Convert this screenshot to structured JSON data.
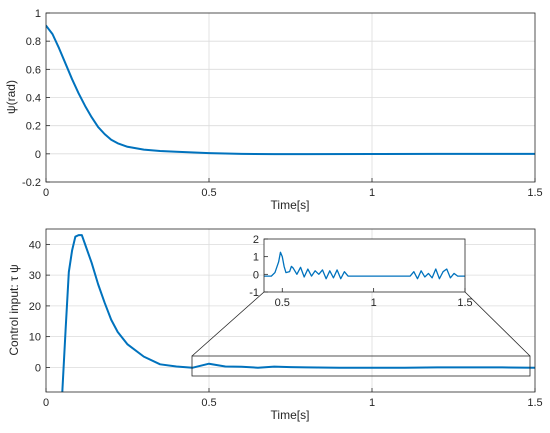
{
  "chart_data": [
    {
      "type": "line",
      "xlabel": "Time[s]",
      "ylabel": "ψ(rad)",
      "xlim": [
        0,
        1.5
      ],
      "ylim": [
        -0.2,
        1
      ],
      "grid": true,
      "xticks": [
        0,
        0.5,
        1,
        1.5
      ],
      "xtick_labels": [
        "0",
        "0.5",
        "1",
        "1.5"
      ],
      "yticks": [
        -0.2,
        0,
        0.2,
        0.4,
        0.6,
        0.8,
        1
      ],
      "ytick_labels": [
        "-0.2",
        "0",
        "0.2",
        "0.4",
        "0.6",
        "0.8",
        "1"
      ],
      "color": "#0072BD",
      "x": [
        0,
        0.02,
        0.04,
        0.06,
        0.08,
        0.1,
        0.12,
        0.14,
        0.16,
        0.18,
        0.2,
        0.22,
        0.25,
        0.3,
        0.35,
        0.4,
        0.5,
        0.6,
        0.7,
        0.8,
        1.0,
        1.2,
        1.5
      ],
      "y": [
        0.91,
        0.85,
        0.75,
        0.64,
        0.53,
        0.43,
        0.34,
        0.26,
        0.19,
        0.14,
        0.1,
        0.075,
        0.05,
        0.03,
        0.02,
        0.015,
        0.005,
        0.0,
        -0.002,
        -0.002,
        -0.001,
        0.0,
        0.0
      ]
    },
    {
      "type": "line",
      "xlabel": "Time[s]",
      "ylabel": "Control input: τ ψ",
      "xlim": [
        0,
        1.5
      ],
      "ylim": [
        -8,
        45
      ],
      "grid": true,
      "xticks": [
        0,
        0.5,
        1,
        1.5
      ],
      "xtick_labels": [
        "0",
        "0.5",
        "1",
        "1.5"
      ],
      "yticks": [
        0,
        10,
        20,
        30,
        40
      ],
      "ytick_labels": [
        "0",
        "10",
        "20",
        "30",
        "40"
      ],
      "color": "#0072BD",
      "x": [
        0.05,
        0.06,
        0.07,
        0.08,
        0.09,
        0.1,
        0.11,
        0.12,
        0.14,
        0.16,
        0.18,
        0.2,
        0.22,
        0.25,
        0.3,
        0.35,
        0.4,
        0.45,
        0.5,
        0.55,
        0.6,
        0.65,
        0.7,
        0.75,
        0.8,
        0.9,
        1.0,
        1.1,
        1.2,
        1.3,
        1.4,
        1.5
      ],
      "y": [
        -8,
        12,
        31,
        38,
        42.5,
        43,
        43,
        40,
        34,
        27,
        21,
        15.5,
        11.5,
        7.5,
        3.5,
        1,
        0.3,
        -0.1,
        1.2,
        0.3,
        0.2,
        -0.1,
        0.25,
        0.1,
        0.0,
        -0.1,
        -0.1,
        -0.1,
        0.0,
        0.0,
        0.0,
        -0.1
      ]
    },
    {
      "type": "line",
      "xlim": [
        0.4,
        1.5
      ],
      "ylim": [
        -1,
        2
      ],
      "grid": false,
      "xticks": [
        0.5,
        1,
        1.5
      ],
      "xtick_labels": [
        "0.5",
        "1",
        "1.5"
      ],
      "yticks": [
        -1,
        0,
        1,
        2
      ],
      "ytick_labels": [
        "-1",
        "0",
        "1",
        "2"
      ],
      "color": "#0072BD",
      "x": [
        0.4,
        0.44,
        0.46,
        0.48,
        0.49,
        0.5,
        0.51,
        0.52,
        0.54,
        0.55,
        0.56,
        0.58,
        0.6,
        0.62,
        0.64,
        0.66,
        0.68,
        0.7,
        0.72,
        0.74,
        0.76,
        0.78,
        0.8,
        0.82,
        0.84,
        0.86,
        0.9,
        1.0,
        1.1,
        1.2,
        1.22,
        1.24,
        1.26,
        1.28,
        1.3,
        1.32,
        1.34,
        1.36,
        1.38,
        1.4,
        1.42,
        1.44,
        1.46,
        1.5
      ],
      "y": [
        -0.1,
        -0.1,
        0.1,
        0.7,
        1.25,
        1.0,
        0.45,
        0.1,
        0.15,
        0.45,
        0.35,
        0.0,
        0.4,
        -0.15,
        0.3,
        -0.1,
        0.2,
        0.0,
        0.25,
        -0.25,
        0.2,
        -0.2,
        0.25,
        -0.25,
        0.15,
        -0.1,
        -0.1,
        -0.1,
        -0.1,
        -0.1,
        0.15,
        -0.25,
        0.2,
        -0.15,
        0.05,
        -0.2,
        0.3,
        -0.25,
        0.15,
        0.3,
        -0.2,
        0.05,
        -0.1,
        -0.1
      ]
    }
  ]
}
